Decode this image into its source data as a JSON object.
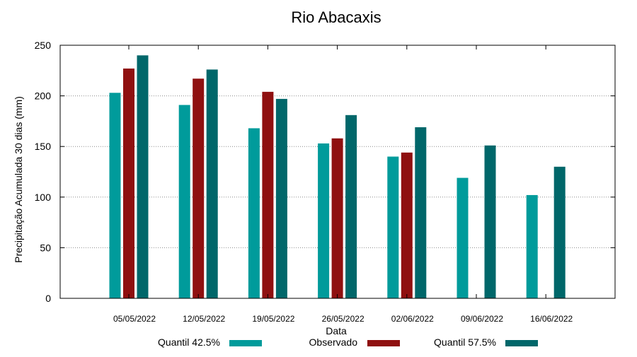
{
  "chart_data": {
    "type": "bar",
    "title": "Rio Abacaxis",
    "xlabel": "Data",
    "ylabel": "Precipitação Acumulada 30 dias (mm)",
    "ylim": [
      0,
      250
    ],
    "yticks": [
      0,
      50,
      100,
      150,
      200,
      250
    ],
    "grid": "horizontal-dotted",
    "legend_position": "bottom",
    "categories": [
      "05/05/2022",
      "12/05/2022",
      "19/05/2022",
      "26/05/2022",
      "02/06/2022",
      "09/06/2022",
      "16/06/2022"
    ],
    "series": [
      {
        "name": "Quantil 42.5%",
        "color": "#009b9b",
        "values": [
          203,
          191,
          168,
          153,
          140,
          119,
          102
        ]
      },
      {
        "name": "Observado",
        "color": "#8f1010",
        "values": [
          227,
          217,
          204,
          158,
          144,
          null,
          null
        ]
      },
      {
        "name": "Quantil 57.5%",
        "color": "#00676a",
        "values": [
          240,
          226,
          197,
          181,
          169,
          151,
          130
        ]
      }
    ]
  }
}
